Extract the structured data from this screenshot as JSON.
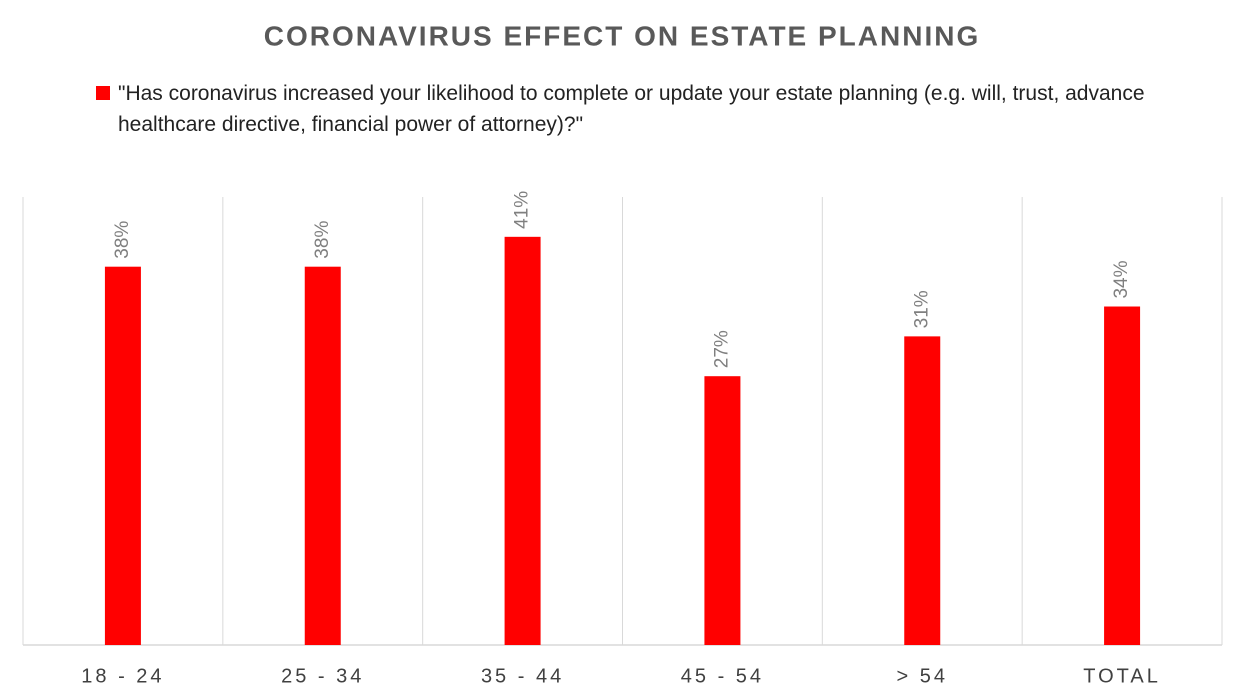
{
  "chart_data": {
    "type": "bar",
    "title": "CORONAVIRUS EFFECT ON ESTATE PLANNING",
    "categories": [
      "18 - 24",
      "25 - 34",
      "35 - 44",
      "45 - 54",
      "> 54",
      "TOTAL"
    ],
    "series": [
      {
        "name": "\"Has coronavirus increased your likelihood to complete or update your estate planning (e.g. will, trust, advance healthcare directive, financial power of attorney)?\"",
        "color": "#ff0000",
        "values": [
          38,
          38,
          41,
          27,
          31,
          34
        ],
        "value_labels": [
          "38%",
          "38%",
          "41%",
          "27%",
          "31%",
          "34%"
        ]
      }
    ],
    "ylim": [
      0,
      45
    ]
  }
}
